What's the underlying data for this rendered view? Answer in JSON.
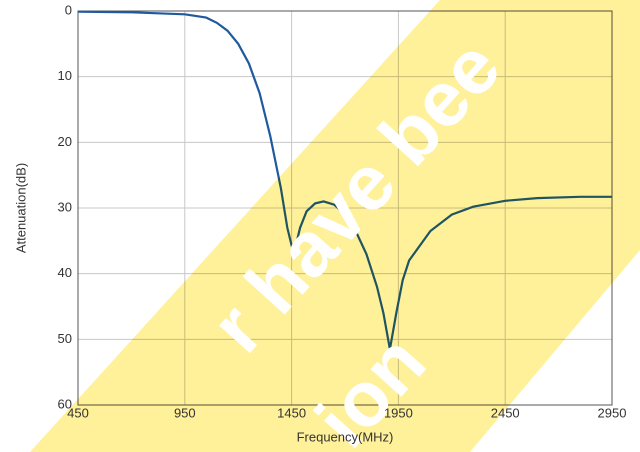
{
  "chart_data": {
    "type": "line",
    "x_label": "Frequency(MHz)",
    "y_label": "Attenuation(dB)",
    "x": [
      450,
      700,
      950,
      1050,
      1100,
      1150,
      1200,
      1250,
      1300,
      1350,
      1400,
      1430,
      1460,
      1490,
      1520,
      1560,
      1600,
      1650,
      1700,
      1750,
      1800,
      1850,
      1880,
      1910,
      1940,
      1970,
      2000,
      2100,
      2200,
      2300,
      2450,
      2600,
      2800,
      2950
    ],
    "series": [
      {
        "name": "Attenuation",
        "color": "#1f5a9e",
        "values": [
          0.1,
          0.2,
          0.5,
          1,
          1.8,
          3,
          5,
          8,
          12.5,
          19,
          27,
          33,
          37,
          33,
          30.5,
          29.3,
          29,
          29.5,
          31,
          33.5,
          37,
          42,
          46,
          51.5,
          46,
          41,
          38,
          33.5,
          31,
          29.8,
          28.9,
          28.5,
          28.3,
          28.3
        ]
      }
    ],
    "xlim": [
      450,
      2950
    ],
    "xticks": [
      450,
      950,
      1450,
      1950,
      2450,
      2950
    ],
    "ylim": [
      0,
      60
    ],
    "yticks": [
      0,
      10,
      20,
      30,
      40,
      50,
      60
    ],
    "y_inverted": true,
    "grid": true,
    "annotations": [
      "r have bee",
      "ion"
    ]
  }
}
